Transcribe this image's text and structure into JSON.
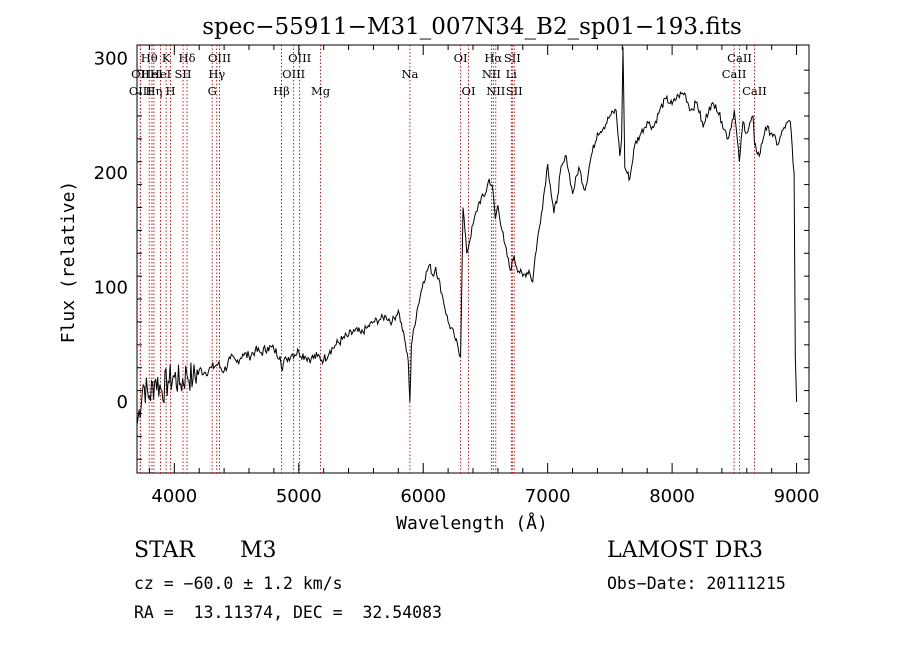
{
  "chart_data": {
    "type": "line",
    "title": "spec−55911−M31_007N34_B2_sp01−193.fits",
    "xlabel": "Wavelength (Å)",
    "ylabel": "Flux (relative)",
    "xlim": [
      3700,
      9100
    ],
    "ylim": [
      -62,
      312
    ],
    "x_ticks": [
      4000,
      5000,
      6000,
      7000,
      8000,
      9000
    ],
    "y_ticks": [
      0,
      100,
      200,
      300
    ],
    "series": [
      {
        "name": "spectrum",
        "x": [
          3700,
          3750,
          3800,
          3850,
          3900,
          3950,
          4000,
          4050,
          4100,
          4150,
          4200,
          4250,
          4300,
          4350,
          4400,
          4450,
          4500,
          4550,
          4600,
          4650,
          4700,
          4750,
          4800,
          4850,
          4860,
          4900,
          4950,
          5000,
          5050,
          5100,
          5150,
          5200,
          5250,
          5300,
          5350,
          5400,
          5450,
          5500,
          5550,
          5600,
          5650,
          5700,
          5750,
          5800,
          5850,
          5880,
          5893,
          5905,
          5950,
          6000,
          6050,
          6080,
          6100,
          6150,
          6200,
          6250,
          6300,
          6320,
          6350,
          6400,
          6450,
          6500,
          6530,
          6560,
          6580,
          6600,
          6650,
          6700,
          6730,
          6750,
          6800,
          6850,
          6880,
          6900,
          6950,
          7000,
          7020,
          7050,
          7080,
          7100,
          7150,
          7200,
          7250,
          7300,
          7350,
          7400,
          7450,
          7500,
          7550,
          7580,
          7594,
          7605,
          7620,
          7640,
          7660,
          7700,
          7750,
          7800,
          7850,
          7900,
          7950,
          8000,
          8050,
          8100,
          8150,
          8200,
          8250,
          8300,
          8350,
          8400,
          8450,
          8500,
          8540,
          8570,
          8600,
          8650,
          8662,
          8700,
          8750,
          8800,
          8850,
          8900,
          8950,
          8980,
          8990,
          9000
        ],
        "y": [
          -20,
          15,
          5,
          20,
          10,
          18,
          22,
          16,
          25,
          20,
          28,
          26,
          30,
          33,
          27,
          38,
          35,
          42,
          40,
          45,
          43,
          48,
          46,
          40,
          30,
          38,
          42,
          44,
          40,
          38,
          40,
          37,
          45,
          50,
          55,
          58,
          62,
          60,
          65,
          70,
          72,
          75,
          70,
          80,
          55,
          35,
          0,
          50,
          80,
          105,
          120,
          110,
          118,
          95,
          70,
          58,
          40,
          170,
          130,
          155,
          175,
          182,
          195,
          185,
          160,
          172,
          140,
          115,
          128,
          118,
          110,
          115,
          105,
          128,
          165,
          208,
          190,
          165,
          180,
          200,
          215,
          182,
          205,
          185,
          215,
          235,
          240,
          250,
          255,
          215,
          230,
          310,
          205,
          200,
          195,
          225,
          235,
          245,
          240,
          255,
          265,
          260,
          268,
          270,
          255,
          262,
          240,
          258,
          260,
          245,
          230,
          255,
          210,
          245,
          235,
          250,
          225,
          215,
          240,
          235,
          225,
          240,
          245,
          200,
          40,
          0
        ]
      }
    ],
    "lines": [
      {
        "name": "Hθ",
        "w": 3798,
        "row": 0
      },
      {
        "name": "OII",
        "w": 3727,
        "row": 1
      },
      {
        "name": "OIII",
        "w": 3727,
        "row": 2
      },
      {
        "name": "HeI",
        "w": 3820,
        "row": 1
      },
      {
        "name": "Hη",
        "w": 3836,
        "row": 2
      },
      {
        "name": "K",
        "w": 3934,
        "row": 0
      },
      {
        "name": "H",
        "w": 3969,
        "row": 2
      },
      {
        "name": "HeI",
        "w": 3889,
        "row": 1
      },
      {
        "name": "SII",
        "w": 4070,
        "row": 1
      },
      {
        "name": "Hδ",
        "w": 4102,
        "row": 0
      },
      {
        "name": "OIII",
        "w": 4363,
        "row": 0
      },
      {
        "name": "Hγ",
        "w": 4341,
        "row": 1
      },
      {
        "name": "G",
        "w": 4304,
        "row": 2
      },
      {
        "name": "Hβ",
        "w": 4861,
        "row": 2
      },
      {
        "name": "OIII",
        "w": 4959,
        "row": 1
      },
      {
        "name": "OIII",
        "w": 5007,
        "row": 0
      },
      {
        "name": "Mg",
        "w": 5175,
        "row": 2
      },
      {
        "name": "Na",
        "w": 5893,
        "row": 1
      },
      {
        "name": "OI",
        "w": 6300,
        "row": 0
      },
      {
        "name": "OI",
        "w": 6364,
        "row": 2
      },
      {
        "name": "Hα",
        "w": 6563,
        "row": 0
      },
      {
        "name": "NII",
        "w": 6548,
        "row": 1
      },
      {
        "name": "NII",
        "w": 6583,
        "row": 2
      },
      {
        "name": "SII",
        "w": 6716,
        "row": 0
      },
      {
        "name": "Li",
        "w": 6708,
        "row": 1
      },
      {
        "name": "SII",
        "w": 6731,
        "row": 2
      },
      {
        "name": "CaII",
        "w": 8498,
        "row": 1
      },
      {
        "name": "CaII",
        "w": 8542,
        "row": 0
      },
      {
        "name": "CaII",
        "w": 8662,
        "row": 2
      }
    ]
  },
  "info": {
    "object_class": "STAR",
    "subclass": "M3",
    "survey": "LAMOST DR3",
    "redshift": "cz = −60.0 ± 1.2 km/s",
    "obs_date": "Obs−Date: 20111215",
    "coords": "RA =  13.11374, DEC =  32.54083"
  }
}
